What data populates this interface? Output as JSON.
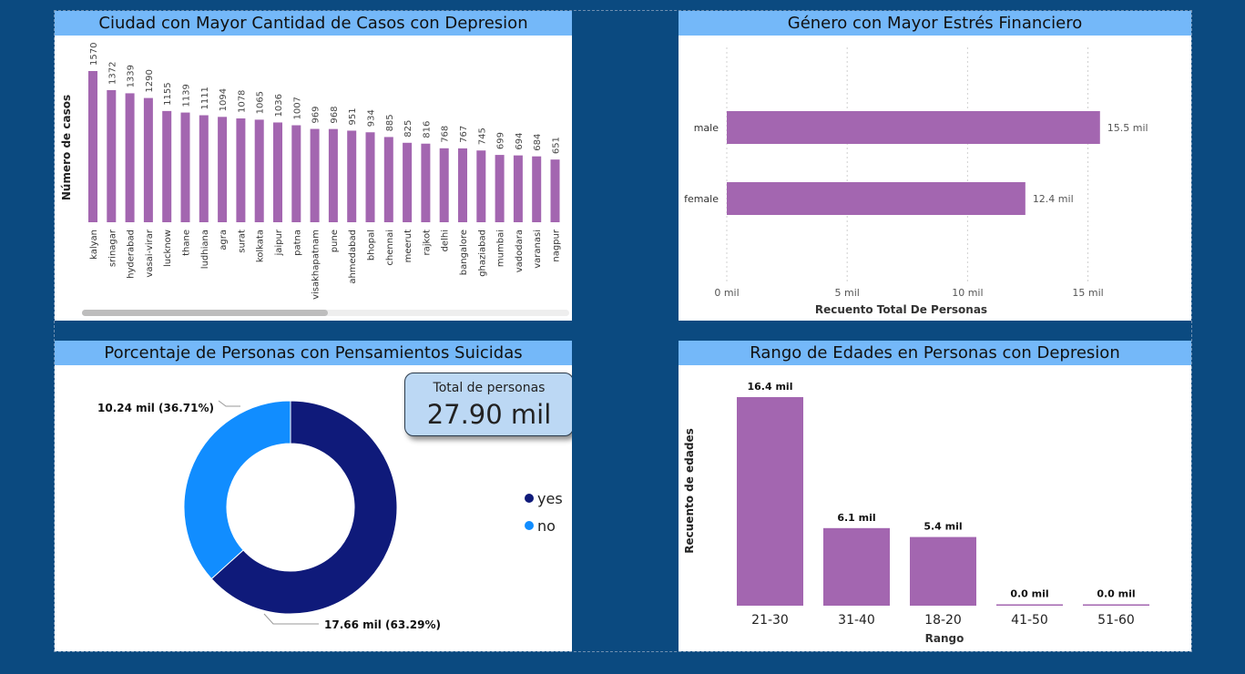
{
  "colors": {
    "bar": "#a366b0",
    "donut_yes": "#0f1a7a",
    "donut_no": "#118dff",
    "title_bg": "#74b8f9",
    "background": "#0b4a80"
  },
  "panels": {
    "cities": {
      "title": "Ciudad con Mayor Cantidad de Casos con Depresion"
    },
    "gender": {
      "title": "Género con Mayor Estrés Financiero"
    },
    "suicidal": {
      "title": "Porcentaje de Personas con Pensamientos Suicidas"
    },
    "ages": {
      "title": "Rango de Edades en Personas con Depresion"
    }
  },
  "kpi": {
    "label": "Total de personas",
    "value": "27.90 mil"
  },
  "legend": {
    "items": [
      {
        "label": "yes",
        "color": "#0f1a7a"
      },
      {
        "label": "no",
        "color": "#118dff"
      }
    ]
  },
  "chart_data": [
    {
      "type": "bar",
      "title": "Ciudad con Mayor Cantidad de Casos con Depresion",
      "ylabel": "Número de casos",
      "xlabel": "",
      "categories": [
        "kalyan",
        "srinagar",
        "hyderabad",
        "vasai-virar",
        "lucknow",
        "thane",
        "ludhiana",
        "agra",
        "surat",
        "kolkata",
        "jaipur",
        "patna",
        "visakhapatnam",
        "pune",
        "ahmedabad",
        "bhopal",
        "chennai",
        "meerut",
        "rajkot",
        "delhi",
        "bangalore",
        "ghaziabad",
        "mumbai",
        "vadodara",
        "varanasi",
        "nagpur"
      ],
      "values": [
        1570,
        1372,
        1339,
        1290,
        1155,
        1139,
        1111,
        1094,
        1078,
        1065,
        1036,
        1007,
        969,
        968,
        951,
        934,
        885,
        825,
        816,
        768,
        767,
        745,
        699,
        694,
        684,
        651
      ],
      "ylim": [
        0,
        1570
      ],
      "grid": false,
      "data_labels": true
    },
    {
      "type": "bar",
      "orientation": "horizontal",
      "title": "Género con Mayor Estrés Financiero",
      "xlabel": "Recuento Total De Personas",
      "ylabel": "",
      "categories": [
        "male",
        "female"
      ],
      "values": [
        15.5,
        12.4
      ],
      "value_labels": [
        "15.5 mil",
        "12.4 mil"
      ],
      "xlim": [
        0,
        16
      ],
      "ticks": [
        0,
        5,
        10,
        15
      ],
      "tick_labels": [
        "0 mil",
        "5 mil",
        "10 mil",
        "15 mil"
      ],
      "grid": true
    },
    {
      "type": "pie",
      "donut": true,
      "title": "Porcentaje de Personas con Pensamientos Suicidas",
      "categories": [
        "yes",
        "no"
      ],
      "values": [
        17.66,
        10.24
      ],
      "value_labels": [
        "17.66 mil (63.29%)",
        "10.24 mil (36.71%)"
      ],
      "legend": "right"
    },
    {
      "type": "bar",
      "title": "Rango de Edades en Personas con Depresion",
      "xlabel": "Rango",
      "ylabel": "Recuento de edades",
      "categories": [
        "21-30",
        "31-40",
        "18-20",
        "41-50",
        "51-60"
      ],
      "values": [
        16.4,
        6.1,
        5.4,
        0.0,
        0.0
      ],
      "value_labels": [
        "16.4 mil",
        "6.1 mil",
        "5.4 mil",
        "0.0 mil",
        "0.0 mil"
      ],
      "ylim": [
        0,
        16.4
      ],
      "grid": false
    }
  ]
}
